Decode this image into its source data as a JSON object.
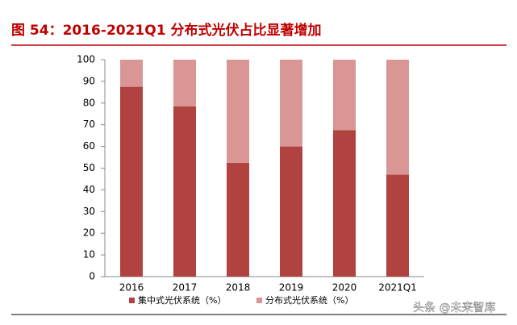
{
  "chart_data": {
    "type": "stacked-bar",
    "title": "图 54：2016-2021Q1 分布式光伏占比显著增加",
    "categories": [
      "2016",
      "2017",
      "2018",
      "2019",
      "2020",
      "2021Q1"
    ],
    "series": [
      {
        "name": "集中式光伏系统（%）",
        "color": "#b0433f",
        "values": [
          87.5,
          78.5,
          52.5,
          60,
          67.5,
          47
        ]
      },
      {
        "name": "分布式光伏系统（%）",
        "color": "#d99694",
        "values": [
          12.5,
          21.5,
          47.5,
          40,
          32.5,
          53
        ]
      }
    ],
    "ylim": [
      0,
      100
    ],
    "yticks": [
      0,
      10,
      20,
      30,
      40,
      50,
      60,
      70,
      80,
      90,
      100
    ],
    "watermark": "头条 @未来智库"
  }
}
